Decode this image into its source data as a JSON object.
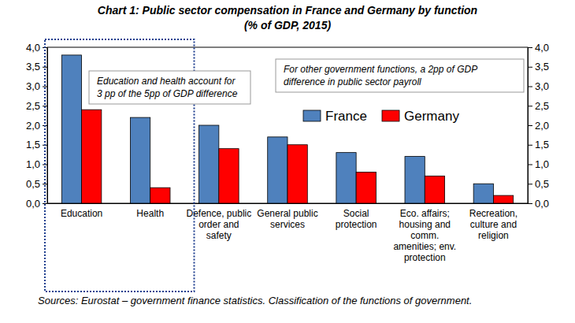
{
  "chart_data": {
    "type": "bar",
    "title": "Chart 1: Public sector compensation in France and Germany by function",
    "subtitle": "(% of GDP, 2015)",
    "categories": [
      "Education",
      "Health",
      "Defence, public order and safety",
      "General public services",
      "Social protection",
      "Eco. affairs; housing and comm. amenities; env. protection",
      "Recreation, culture and religion"
    ],
    "series": [
      {
        "name": "France",
        "color": "#4f81bd",
        "values": [
          3.8,
          2.2,
          2.0,
          1.7,
          1.3,
          1.2,
          0.5
        ]
      },
      {
        "name": "Germany",
        "color": "#ff0000",
        "values": [
          2.4,
          0.4,
          1.4,
          1.5,
          0.8,
          0.7,
          0.2
        ]
      }
    ],
    "ylim": [
      0,
      4
    ],
    "yticks": [
      {
        "value": 0,
        "label": "0,0"
      },
      {
        "value": 0.5,
        "label": "0,5"
      },
      {
        "value": 1,
        "label": "1,0"
      },
      {
        "value": 1.5,
        "label": "1,5"
      },
      {
        "value": 2,
        "label": "2,0"
      },
      {
        "value": 2.5,
        "label": "2,5"
      },
      {
        "value": 3,
        "label": "3,0"
      },
      {
        "value": 3.5,
        "label": "3,5"
      },
      {
        "value": 4,
        "label": "4,0"
      }
    ],
    "y2lim": [
      0,
      4
    ],
    "y2ticks": [
      {
        "value": 0,
        "label": "0,0"
      },
      {
        "value": 0.5,
        "label": "0,5"
      },
      {
        "value": 1,
        "label": "1,0"
      },
      {
        "value": 1.5,
        "label": "1,5"
      },
      {
        "value": 2,
        "label": "2,0"
      },
      {
        "value": 2.5,
        "label": "2,5"
      },
      {
        "value": 3,
        "label": "3,0"
      },
      {
        "value": 3.5,
        "label": "3,5"
      },
      {
        "value": 4,
        "label": "4,0"
      }
    ],
    "grid": false,
    "legend": "top-right",
    "annotations": [
      {
        "text": "Education and health account for 3 pp of the 5pp of GDP difference"
      },
      {
        "text": "For other government functions, a 2pp of GDP difference in public sector payroll"
      }
    ],
    "source": "Sources: Eurostat – government finance statistics. Classification of the functions of government."
  }
}
